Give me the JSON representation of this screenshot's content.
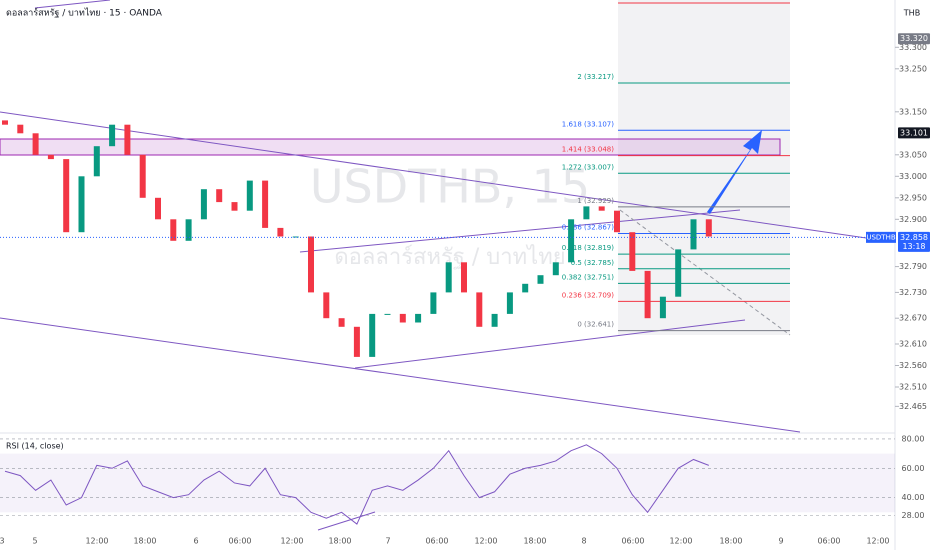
{
  "header": {
    "title": "ดอลลาร์สหรัฐ / บาทไทย · 15 · OANDA",
    "currency": "THB"
  },
  "watermark": {
    "symbol": "USDTHB, 15",
    "name": "ดอลลาร์สหรัฐ / บาทไทย"
  },
  "symbol_tag": "USDTHB",
  "price_labels": [
    {
      "value": 33.32,
      "label": "33.320"
    },
    {
      "value": 33.101,
      "label": "33.101"
    },
    {
      "value": 32.858,
      "label": "32.858",
      "countdown": "13:18"
    }
  ],
  "fib_levels": [
    {
      "label": "2 (33.217)",
      "value": 33.217,
      "color": "#089981"
    },
    {
      "label": "1.618 (33.107)",
      "value": 33.107,
      "color": "#2962ff"
    },
    {
      "label": "1.414 (33.048)",
      "value": 33.048,
      "color": "#f23645"
    },
    {
      "label": "1.272 (33.007)",
      "value": 33.007,
      "color": "#089981"
    },
    {
      "label": "1 (32.929)",
      "value": 32.929,
      "color": "#787b86"
    },
    {
      "label": "0.786 (32.867)",
      "value": 32.867,
      "color": "#2962ff"
    },
    {
      "label": "0.618 (32.819)",
      "value": 32.819,
      "color": "#089981"
    },
    {
      "label": "0.5 (32.785)",
      "value": 32.785,
      "color": "#089981"
    },
    {
      "label": "0.382 (32.751)",
      "value": 32.751,
      "color": "#089981"
    },
    {
      "label": "0.236 (32.709)",
      "value": 32.709,
      "color": "#f23645"
    },
    {
      "label": "0 (32.641)",
      "value": 32.641,
      "color": "#787b86"
    }
  ],
  "x_labels": [
    "3",
    "5",
    "12:00",
    "18:00",
    "6",
    "06:00",
    "12:00",
    "18:00",
    "7",
    "06:00",
    "12:00",
    "18:00",
    "8",
    "06:00",
    "12:00",
    "18:00",
    "9",
    "06:00",
    "12:00"
  ],
  "chart_data": [
    {
      "type": "candlestick",
      "up_color": "#089981",
      "down_color": "#f23645",
      "open": [
        33.13,
        33.12,
        33.1,
        33.05,
        33.04,
        32.87,
        33.0,
        33.07,
        33.12,
        33.05,
        32.95,
        32.9,
        32.85,
        32.9,
        32.97,
        32.94,
        32.92,
        32.99,
        32.88,
        32.86,
        32.86,
        32.73,
        32.67,
        32.65,
        32.58,
        32.68,
        32.68,
        32.66,
        32.68,
        32.73,
        32.8,
        32.73,
        32.65,
        32.68,
        32.73,
        32.75,
        32.77,
        32.8,
        32.9,
        32.93,
        32.92,
        32.87,
        32.78,
        32.67,
        32.72,
        32.83,
        32.9
      ],
      "close": [
        33.12,
        33.1,
        33.05,
        33.04,
        32.87,
        33.0,
        33.07,
        33.12,
        33.05,
        32.95,
        32.9,
        32.85,
        32.9,
        32.97,
        32.94,
        32.92,
        32.99,
        32.88,
        32.86,
        32.86,
        32.73,
        32.67,
        32.65,
        32.58,
        32.68,
        32.68,
        32.66,
        32.68,
        32.73,
        32.8,
        32.73,
        32.65,
        32.68,
        32.73,
        32.75,
        32.77,
        32.8,
        32.9,
        32.93,
        32.92,
        32.87,
        32.78,
        32.67,
        32.72,
        32.83,
        32.9,
        32.86
      ],
      "ylim": [
        32.41,
        33.41
      ],
      "yticks": [
        {
          "value": 33.3,
          "label": "33.300"
        },
        {
          "value": 33.25,
          "label": "33.250"
        },
        {
          "value": 33.15,
          "label": "33.150"
        },
        {
          "value": 33.05,
          "label": "33.050"
        },
        {
          "value": 33,
          "label": "33.000"
        },
        {
          "value": 32.95,
          "label": "32.950"
        },
        {
          "value": 32.9,
          "label": "32.900"
        },
        {
          "value": 32.79,
          "label": "32.790"
        },
        {
          "value": 32.73,
          "label": "32.730"
        },
        {
          "value": 32.67,
          "label": "32.670"
        },
        {
          "value": 32.61,
          "label": "32.610"
        },
        {
          "value": 32.56,
          "label": "32.560"
        },
        {
          "value": 32.51,
          "label": "32.510"
        },
        {
          "value": 32.465,
          "label": "32.465"
        }
      ]
    },
    {
      "type": "line",
      "title": "RSI (14, close)",
      "color": "#7e57c2",
      "values": [
        58,
        55,
        45,
        52,
        35,
        40,
        62,
        60,
        65,
        48,
        44,
        40,
        42,
        52,
        58,
        50,
        48,
        60,
        42,
        40,
        30,
        26,
        30,
        22,
        45,
        48,
        45,
        52,
        60,
        72,
        55,
        40,
        44,
        56,
        60,
        62,
        65,
        72,
        76,
        70,
        60,
        42,
        30,
        45,
        60,
        66,
        62
      ],
      "ylim": [
        20,
        82
      ],
      "yticks": [
        {
          "value": 80,
          "label": "80.00"
        },
        {
          "value": 60,
          "label": "60.00"
        },
        {
          "value": 40,
          "label": "40.00"
        },
        {
          "value": 28,
          "label": "28.00"
        }
      ]
    }
  ]
}
